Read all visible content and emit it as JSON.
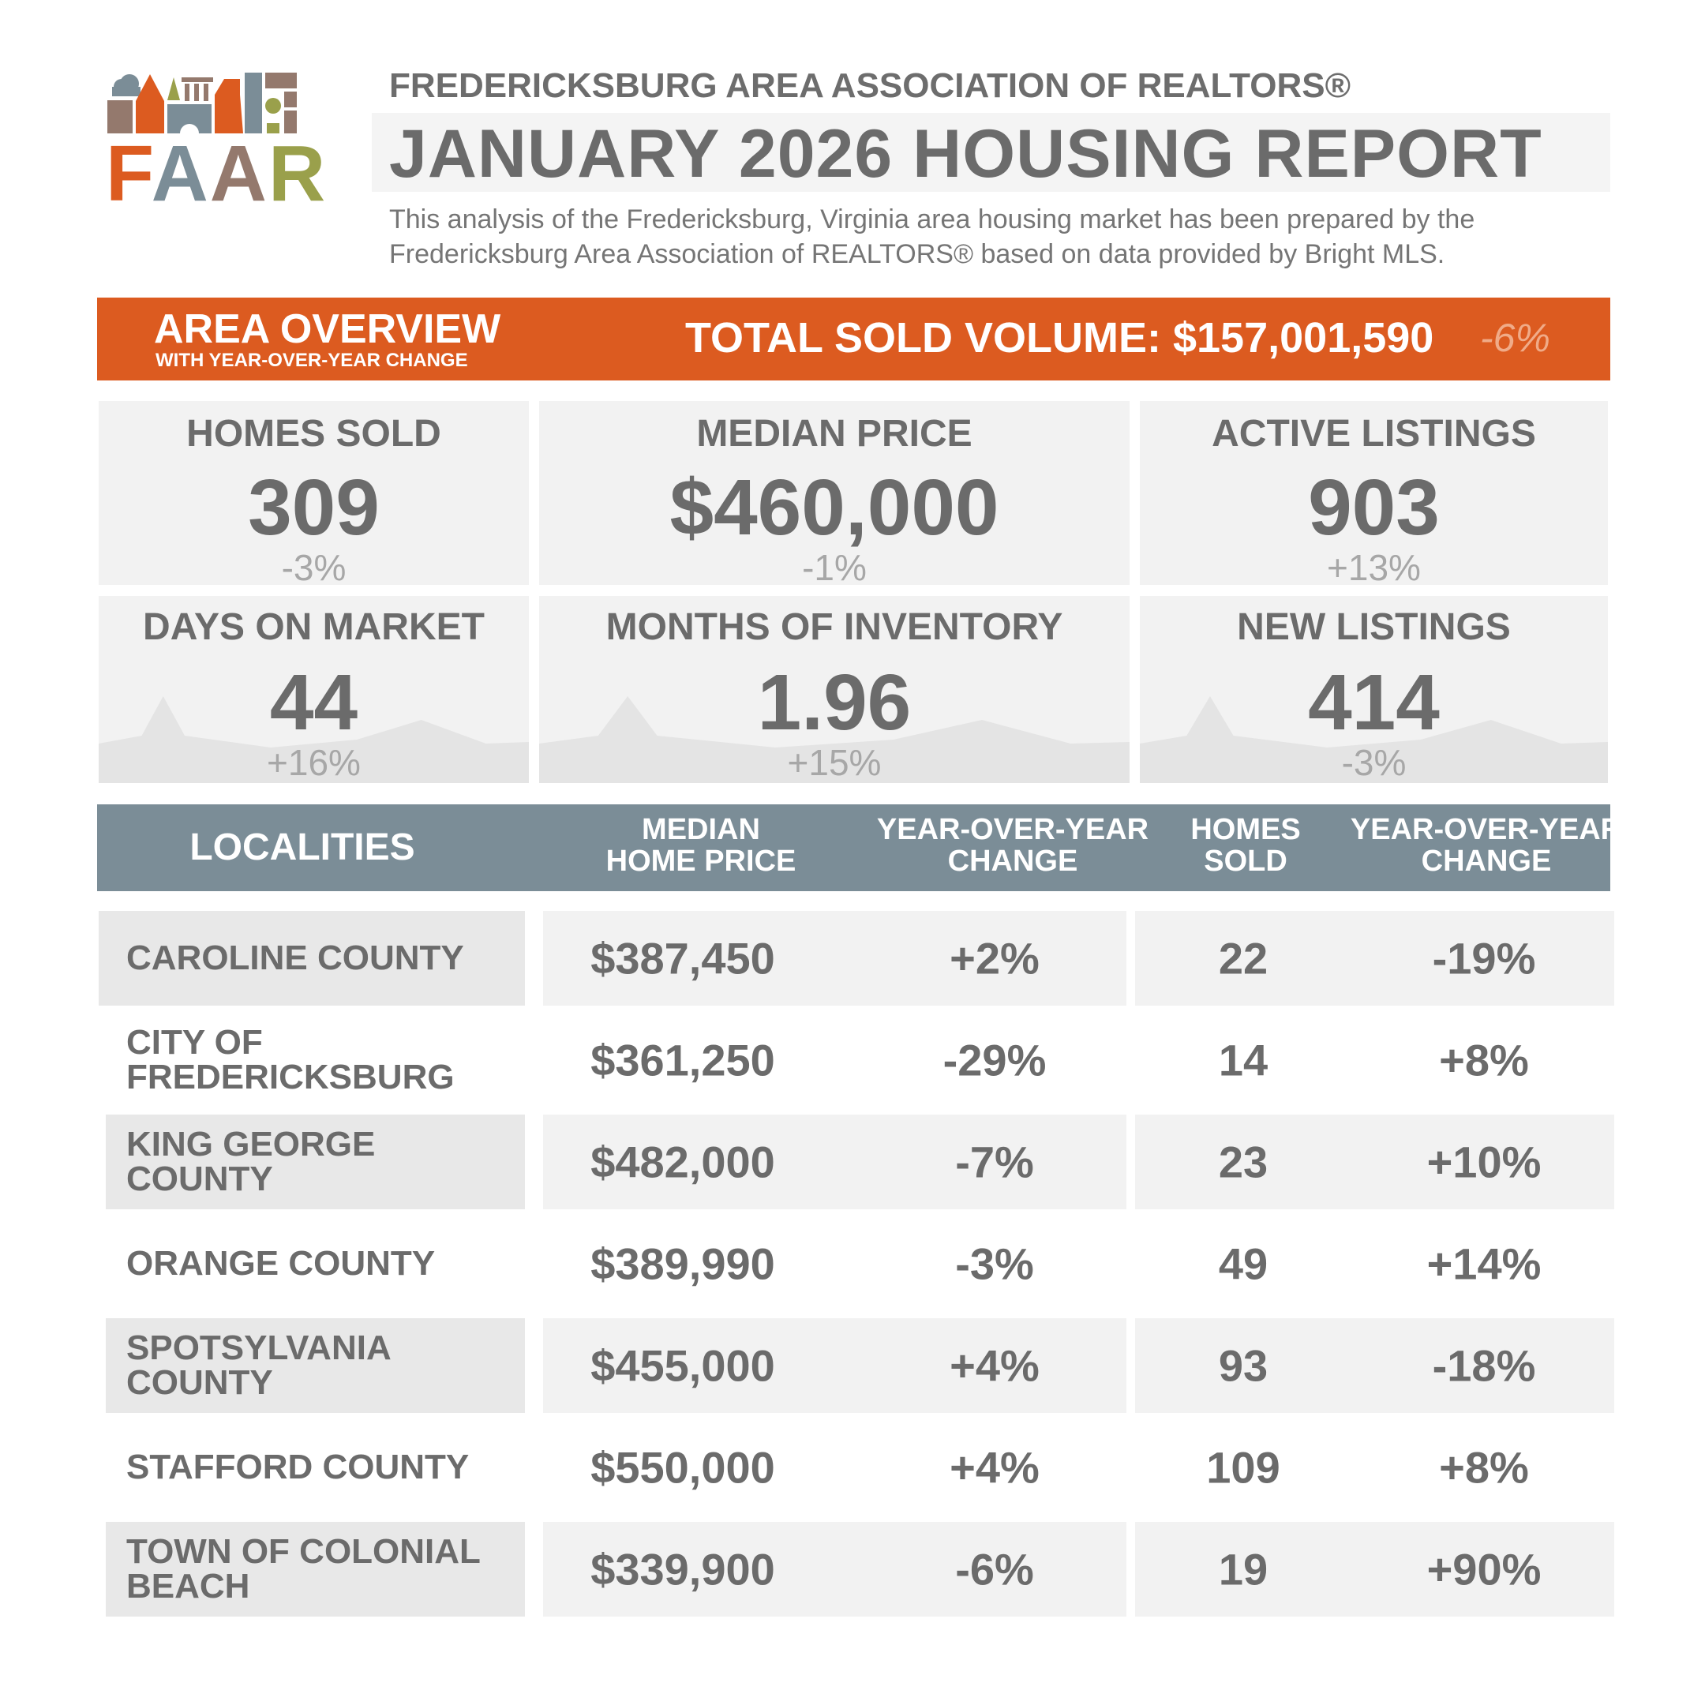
{
  "logo": {
    "letters": [
      "F",
      "A",
      "A",
      "R"
    ],
    "colors": {
      "orange": "#dc5b20",
      "slate": "#7b8d97",
      "taupe": "#94796d",
      "olive": "#9aa04b"
    }
  },
  "header": {
    "org": "FREDERICKSBURG AREA ASSOCIATION OF REALTORS®",
    "title": "JANUARY 2026 HOUSING REPORT",
    "description": "This analysis of the Fredericksburg, Virginia area housing market has been prepared by the Fredericksburg Area Association of REALTORS® based on data provided by Bright MLS."
  },
  "overview": {
    "title": "AREA OVERVIEW",
    "subtitle": "WITH YEAR-OVER-YEAR CHANGE",
    "total_label": "TOTAL SOLD VOLUME: $157,001,590",
    "total_change": "-6%",
    "accent": "#dc5b20"
  },
  "stats": [
    {
      "label": "HOMES SOLD",
      "value": "309",
      "change": "-3%"
    },
    {
      "label": "MEDIAN PRICE",
      "value": "$460,000",
      "change": "-1%"
    },
    {
      "label": "ACTIVE LISTINGS",
      "value": "903",
      "change": "+13%"
    },
    {
      "label": "DAYS ON MARKET",
      "value": "44",
      "change": "+16%"
    },
    {
      "label": "MONTHS OF INVENTORY",
      "value": "1.96",
      "change": "+15%"
    },
    {
      "label": "NEW LISTINGS",
      "value": "414",
      "change": "-3%"
    }
  ],
  "localities": {
    "headers": [
      "LOCALITIES",
      "MEDIAN\nHOME PRICE",
      "YEAR-OVER-YEAR\nCHANGE",
      "HOMES\nSOLD",
      "YEAR-OVER-YEAR\nCHANGE"
    ],
    "header_color": "#7b8d97",
    "rows": [
      {
        "name": "CAROLINE COUNTY",
        "price": "$387,450",
        "price_change": "+2%",
        "sold": "22",
        "sold_change": "-19%"
      },
      {
        "name": "CITY OF FREDERICKSBURG",
        "price": "$361,250",
        "price_change": "-29%",
        "sold": "14",
        "sold_change": "+8%"
      },
      {
        "name": "KING GEORGE COUNTY",
        "price": "$482,000",
        "price_change": "-7%",
        "sold": "23",
        "sold_change": "+10%"
      },
      {
        "name": "ORANGE COUNTY",
        "price": "$389,990",
        "price_change": "-3%",
        "sold": "49",
        "sold_change": "+14%"
      },
      {
        "name": "SPOTSYLVANIA COUNTY",
        "price": "$455,000",
        "price_change": "+4%",
        "sold": "93",
        "sold_change": "-18%"
      },
      {
        "name": "STAFFORD COUNTY",
        "price": "$550,000",
        "price_change": "+4%",
        "sold": "109",
        "sold_change": "+8%"
      },
      {
        "name": "TOWN OF COLONIAL BEACH",
        "price": "$339,900",
        "price_change": "-6%",
        "sold": "19",
        "sold_change": "+90%"
      }
    ]
  }
}
